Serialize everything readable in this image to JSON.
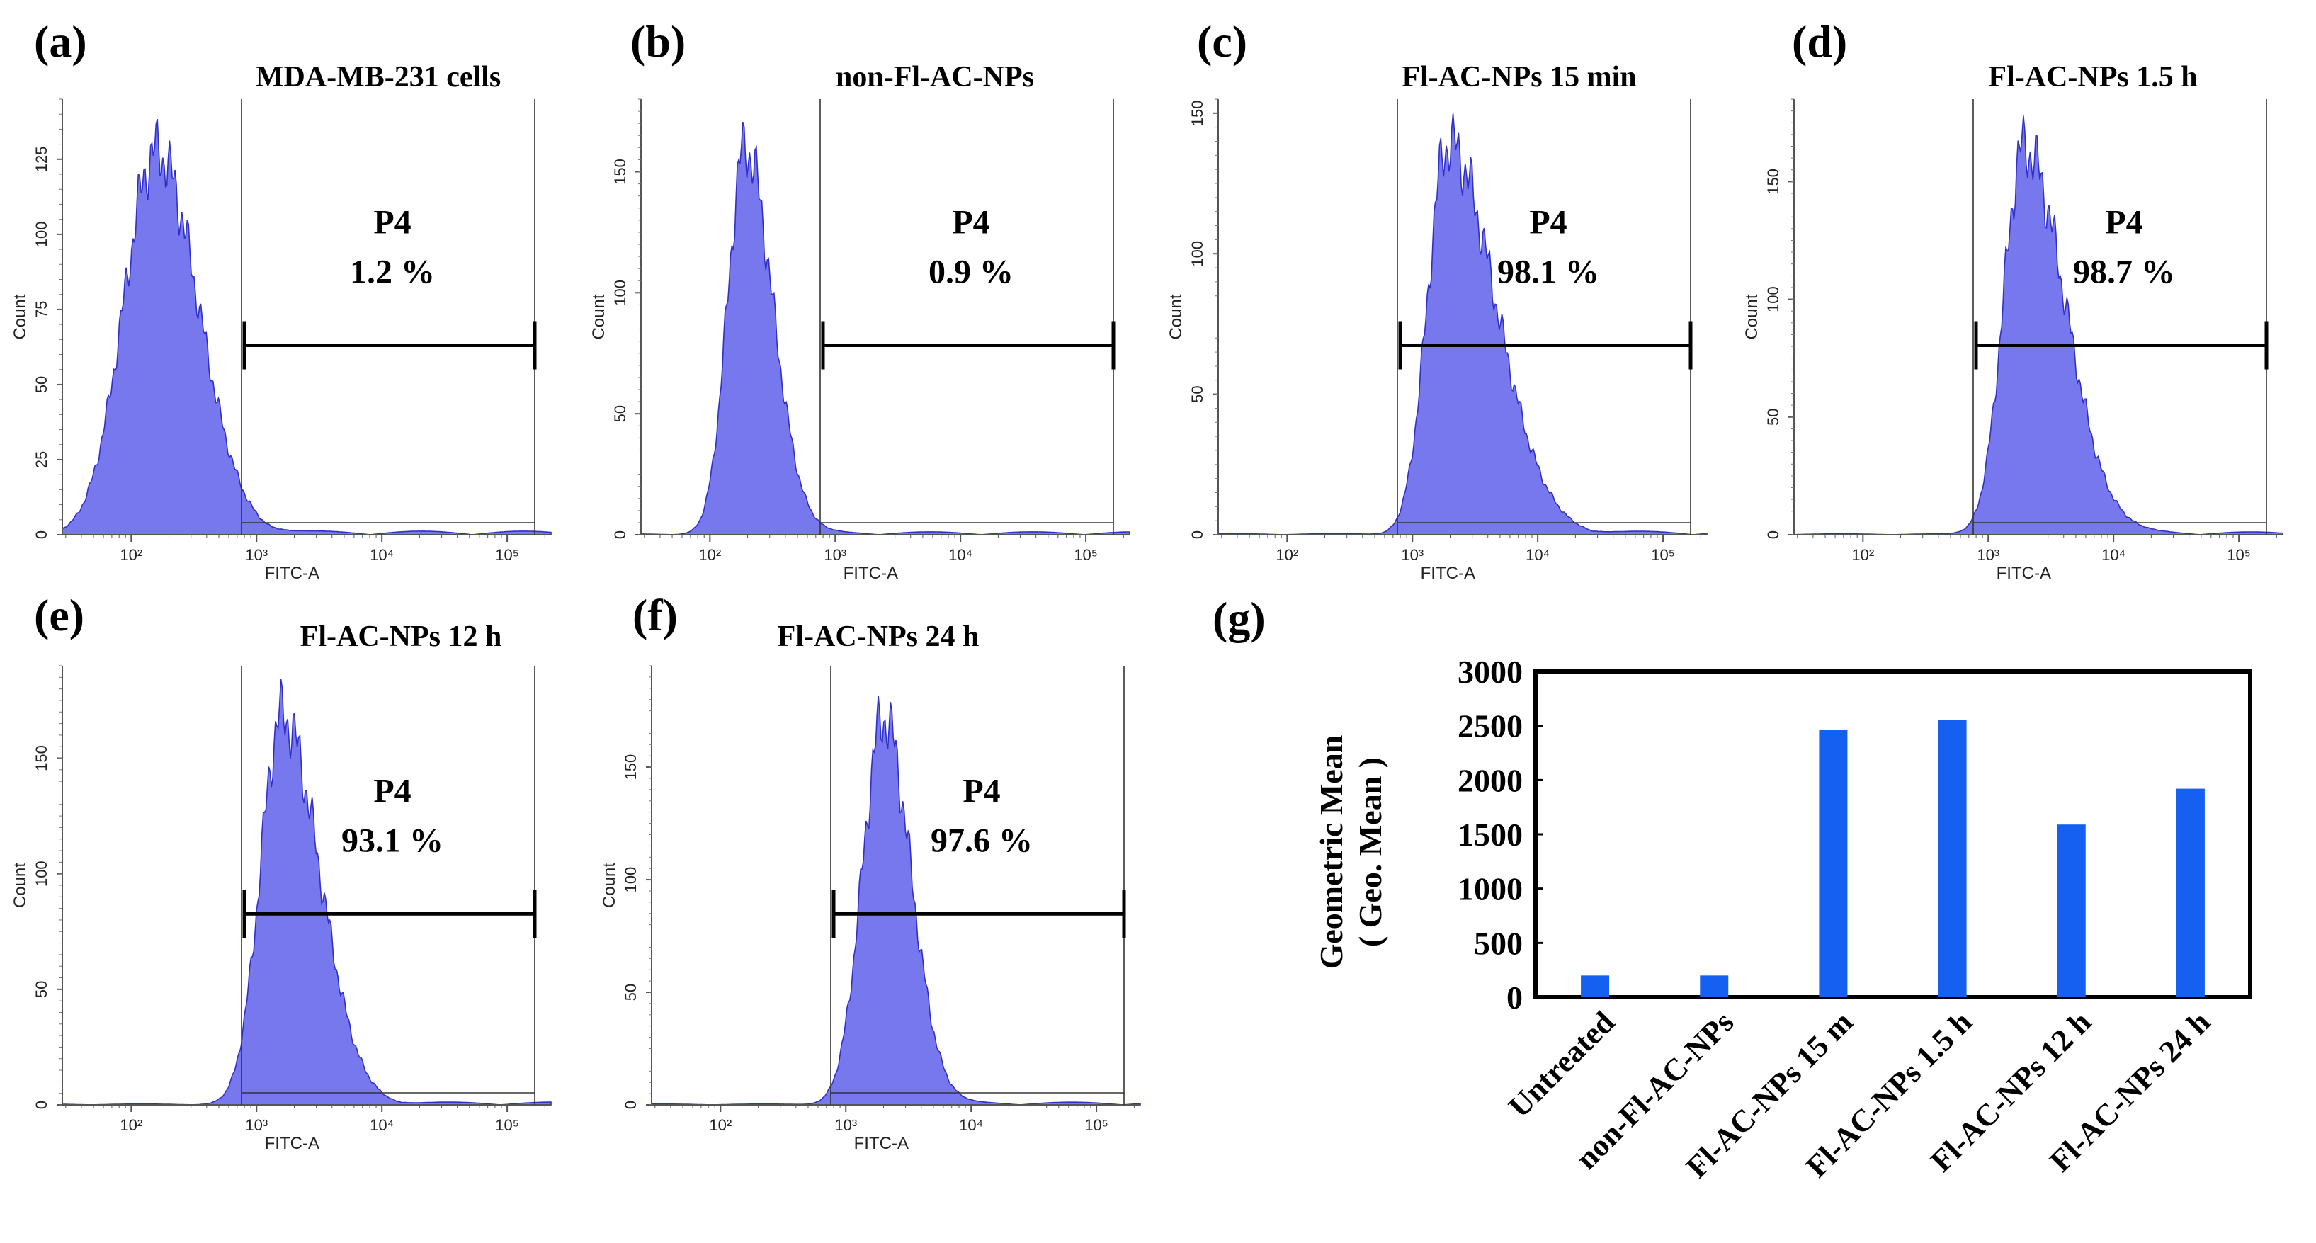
{
  "colors": {
    "histogram_fill": "#7878ee",
    "histogram_stroke": "#3030c8",
    "bar": "#1560f0",
    "gate": "#000000"
  },
  "chart_data": [
    {
      "type": "histogram",
      "panel": "(a)",
      "title": "MDA-MB-231 cells",
      "xlabel": "FITC-A",
      "ylabel": "Count",
      "x_scale": "log10",
      "x_ticks": [
        "10²",
        "10³",
        "10⁴",
        "10⁵"
      ],
      "x_tick_values": [
        2,
        3,
        4,
        5
      ],
      "ylim": [
        0,
        145
      ],
      "y_ticks": [
        0,
        25,
        50,
        75,
        100,
        125
      ],
      "gate": {
        "name": "P4",
        "percent_text": "1.2 %",
        "from_log": 2.88,
        "to_log": 5.22
      },
      "peak_log": 2.2,
      "peak_count": 140,
      "spread_left": 0.26,
      "spread_right": 0.33
    },
    {
      "type": "histogram",
      "panel": "(b)",
      "title": "non-Fl-AC-NPs",
      "xlabel": "FITC-A",
      "ylabel": "Count",
      "x_scale": "log10",
      "x_ticks": [
        "10²",
        "10³",
        "10⁴",
        "10⁵"
      ],
      "x_tick_values": [
        2,
        3,
        4,
        5
      ],
      "ylim": [
        0,
        180
      ],
      "y_ticks": [
        0,
        50,
        100,
        150
      ],
      "gate": {
        "name": "P4",
        "percent_text": "0.9 %",
        "from_log": 2.88,
        "to_log": 5.22
      },
      "peak_log": 2.28,
      "peak_count": 175,
      "spread_left": 0.14,
      "spread_right": 0.22
    },
    {
      "type": "histogram",
      "panel": "(c)",
      "title": "Fl-AC-NPs 15 min",
      "xlabel": "FITC-A",
      "ylabel": "Count",
      "x_scale": "log10",
      "x_ticks": [
        "10²",
        "10³",
        "10⁴",
        "10⁵"
      ],
      "x_tick_values": [
        2,
        3,
        4,
        5
      ],
      "ylim": [
        0,
        155
      ],
      "y_ticks": [
        0,
        50,
        100,
        150
      ],
      "gate": {
        "name": "P4",
        "percent_text": "98.1 %",
        "from_log": 2.88,
        "to_log": 5.22
      },
      "peak_log": 3.28,
      "peak_count": 152,
      "spread_left": 0.16,
      "spread_right": 0.38
    },
    {
      "type": "histogram",
      "panel": "(d)",
      "title": "Fl-AC-NPs 1.5 h",
      "xlabel": "FITC-A",
      "ylabel": "Count",
      "x_scale": "log10",
      "x_ticks": [
        "10²",
        "10³",
        "10⁴",
        "10⁵"
      ],
      "x_tick_values": [
        2,
        3,
        4,
        5
      ],
      "ylim": [
        0,
        185
      ],
      "y_ticks": [
        0,
        50,
        100,
        150
      ],
      "gate": {
        "name": "P4",
        "percent_text": "98.7 %",
        "from_log": 2.88,
        "to_log": 5.22
      },
      "peak_log": 3.28,
      "peak_count": 180,
      "spread_left": 0.16,
      "spread_right": 0.33
    },
    {
      "type": "histogram",
      "panel": "(e)",
      "title": "Fl-AC-NPs 12 h",
      "xlabel": "FITC-A",
      "ylabel": "Count",
      "x_scale": "log10",
      "x_ticks": [
        "10²",
        "10³",
        "10⁴",
        "10⁵"
      ],
      "x_tick_values": [
        2,
        3,
        4,
        5
      ],
      "ylim": [
        0,
        190
      ],
      "y_ticks": [
        0,
        50,
        100,
        150
      ],
      "gate": {
        "name": "P4",
        "percent_text": "93.1 %",
        "from_log": 2.88,
        "to_log": 5.22
      },
      "peak_log": 3.2,
      "peak_count": 185,
      "spread_left": 0.17,
      "spread_right": 0.3
    },
    {
      "type": "histogram",
      "panel": "(f)",
      "title": "Fl-AC-NPs 24 h",
      "xlabel": "FITC-A",
      "ylabel": "Count",
      "x_scale": "log10",
      "x_ticks": [
        "10²",
        "10³",
        "10⁴",
        "10⁵"
      ],
      "x_tick_values": [
        2,
        3,
        4,
        5
      ],
      "ylim": [
        0,
        195
      ],
      "y_ticks": [
        0,
        50,
        100,
        150
      ],
      "gate": {
        "name": "P4",
        "percent_text": "97.6 %",
        "from_log": 2.88,
        "to_log": 5.22
      },
      "peak_log": 3.3,
      "peak_count": 188,
      "spread_left": 0.17,
      "spread_right": 0.22
    },
    {
      "type": "bar",
      "panel": "(g)",
      "title": "",
      "categories": [
        "Untreated",
        "non-Fl-AC-NPs",
        "Fl-AC-NPs 15 m",
        "Fl-AC-NPs 1.5 h",
        "Fl-AC-NPs 12 h",
        "Fl-AC-NPs 24 h"
      ],
      "values": [
        200,
        200,
        2460,
        2550,
        1590,
        1920
      ],
      "ylabel_line1": "Geometric Mean",
      "ylabel_line2": "( Geo. Mean )",
      "ylim": [
        0,
        3000
      ],
      "y_ticks": [
        0,
        500,
        1000,
        1500,
        2000,
        2500,
        3000
      ],
      "grid": false
    }
  ]
}
